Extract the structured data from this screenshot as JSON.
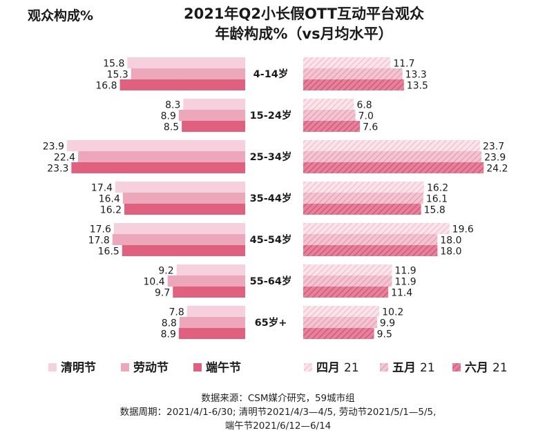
{
  "corner_label": "观众构成%",
  "title_line1": "2021年Q2小长假OTT互动平台观众",
  "title_line2": "年龄构成%（vs月均水平）",
  "footer": {
    "line1": "数据来源：CSM媒介研究，59城市组",
    "line2": "数据周期：2021/4/1-6/30; 清明节2021/4/3—4/5, 劳动节2021/5/1—5/5,",
    "line3": "端午节2021/6/12—6/14"
  },
  "colors": {
    "qingming": "#f6d0dc",
    "laodong": "#eda7bb",
    "duanwu": "#e0607f",
    "april_fill": "#fae3ea",
    "may_fill": "#f3c4d2",
    "june_fill": "#e7809b"
  },
  "chart_data": {
    "type": "bar",
    "orientation": "horizontal-butterfly",
    "categories": [
      "4-14岁",
      "15-24岁",
      "25-34岁",
      "35-44岁",
      "45-54岁",
      "55-64岁",
      "65岁+"
    ],
    "left_series": [
      {
        "name": "清明节",
        "values": [
          15.8,
          8.3,
          23.9,
          17.4,
          17.6,
          9.2,
          7.8
        ]
      },
      {
        "name": "劳动节",
        "values": [
          15.3,
          8.9,
          22.4,
          16.4,
          17.8,
          10.4,
          8.8
        ]
      },
      {
        "name": "端午节",
        "values": [
          16.8,
          8.5,
          23.3,
          16.2,
          16.5,
          9.7,
          8.9
        ]
      }
    ],
    "right_series": [
      {
        "name": "四月",
        "suffix": "21",
        "values": [
          11.7,
          6.8,
          23.7,
          16.2,
          19.6,
          11.9,
          10.2
        ]
      },
      {
        "name": "五月",
        "suffix": "21",
        "values": [
          13.3,
          7.0,
          23.9,
          16.1,
          18.0,
          11.9,
          9.9
        ]
      },
      {
        "name": "六月",
        "suffix": "21",
        "values": [
          13.5,
          7.6,
          24.2,
          15.8,
          18.0,
          11.4,
          9.5
        ]
      }
    ],
    "legend_placement": "bottom",
    "grid": false
  }
}
